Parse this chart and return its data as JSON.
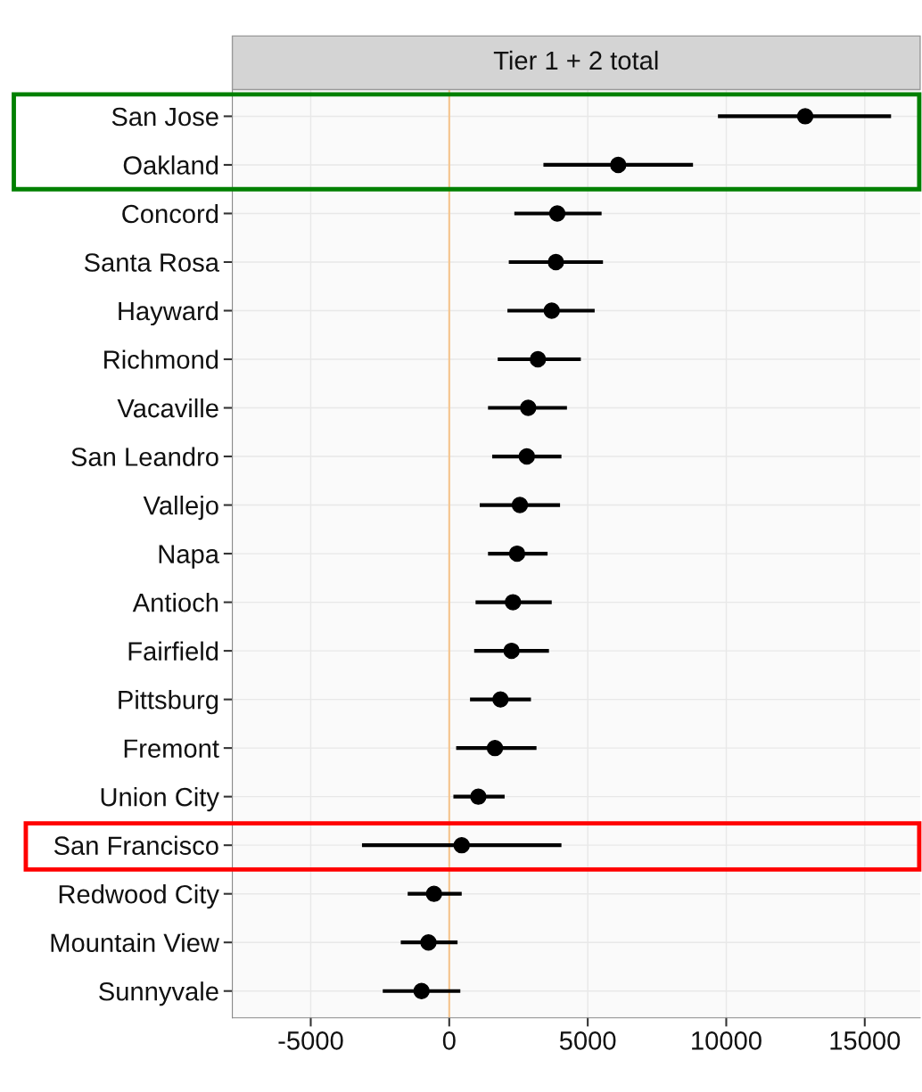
{
  "chart_data": {
    "type": "scatter",
    "orientation": "horizontal",
    "title": "Tier 1 + 2 total",
    "categories": [
      "San Jose",
      "Oakland",
      "Concord",
      "Santa Rosa",
      "Hayward",
      "Richmond",
      "Vacaville",
      "San Leandro",
      "Vallejo",
      "Napa",
      "Antioch",
      "Fairfield",
      "Pittsburg",
      "Fremont",
      "Union City",
      "San Francisco",
      "Redwood City",
      "Mountain View",
      "Sunnyvale"
    ],
    "series": [
      {
        "color": "#000000",
        "values": [
          12850,
          6100,
          3900,
          3850,
          3700,
          3200,
          2850,
          2800,
          2550,
          2450,
          2300,
          2250,
          1850,
          1650,
          1050,
          450,
          -550,
          -750,
          -1000
        ],
        "errors": [
          [
            9700,
            15950
          ],
          [
            3400,
            8800
          ],
          [
            2350,
            5500
          ],
          [
            2150,
            5550
          ],
          [
            2100,
            5250
          ],
          [
            1750,
            4750
          ],
          [
            1400,
            4250
          ],
          [
            1550,
            4050
          ],
          [
            1100,
            4000
          ],
          [
            1400,
            3550
          ],
          [
            950,
            3700
          ],
          [
            900,
            3600
          ],
          [
            750,
            2950
          ],
          [
            250,
            3150
          ],
          [
            150,
            2000
          ],
          [
            -3150,
            4050
          ],
          [
            -1500,
            450
          ],
          [
            -1750,
            300
          ],
          [
            -2400,
            400
          ]
        ]
      }
    ],
    "marker": "circle",
    "xlim": [
      -7830,
      17000
    ],
    "xticks": [
      -5000,
      0,
      5000,
      10000,
      15000
    ],
    "grid": true,
    "ref_lines": [
      {
        "axis": "x",
        "value": 0,
        "color": "#f5c48c"
      }
    ]
  }
}
